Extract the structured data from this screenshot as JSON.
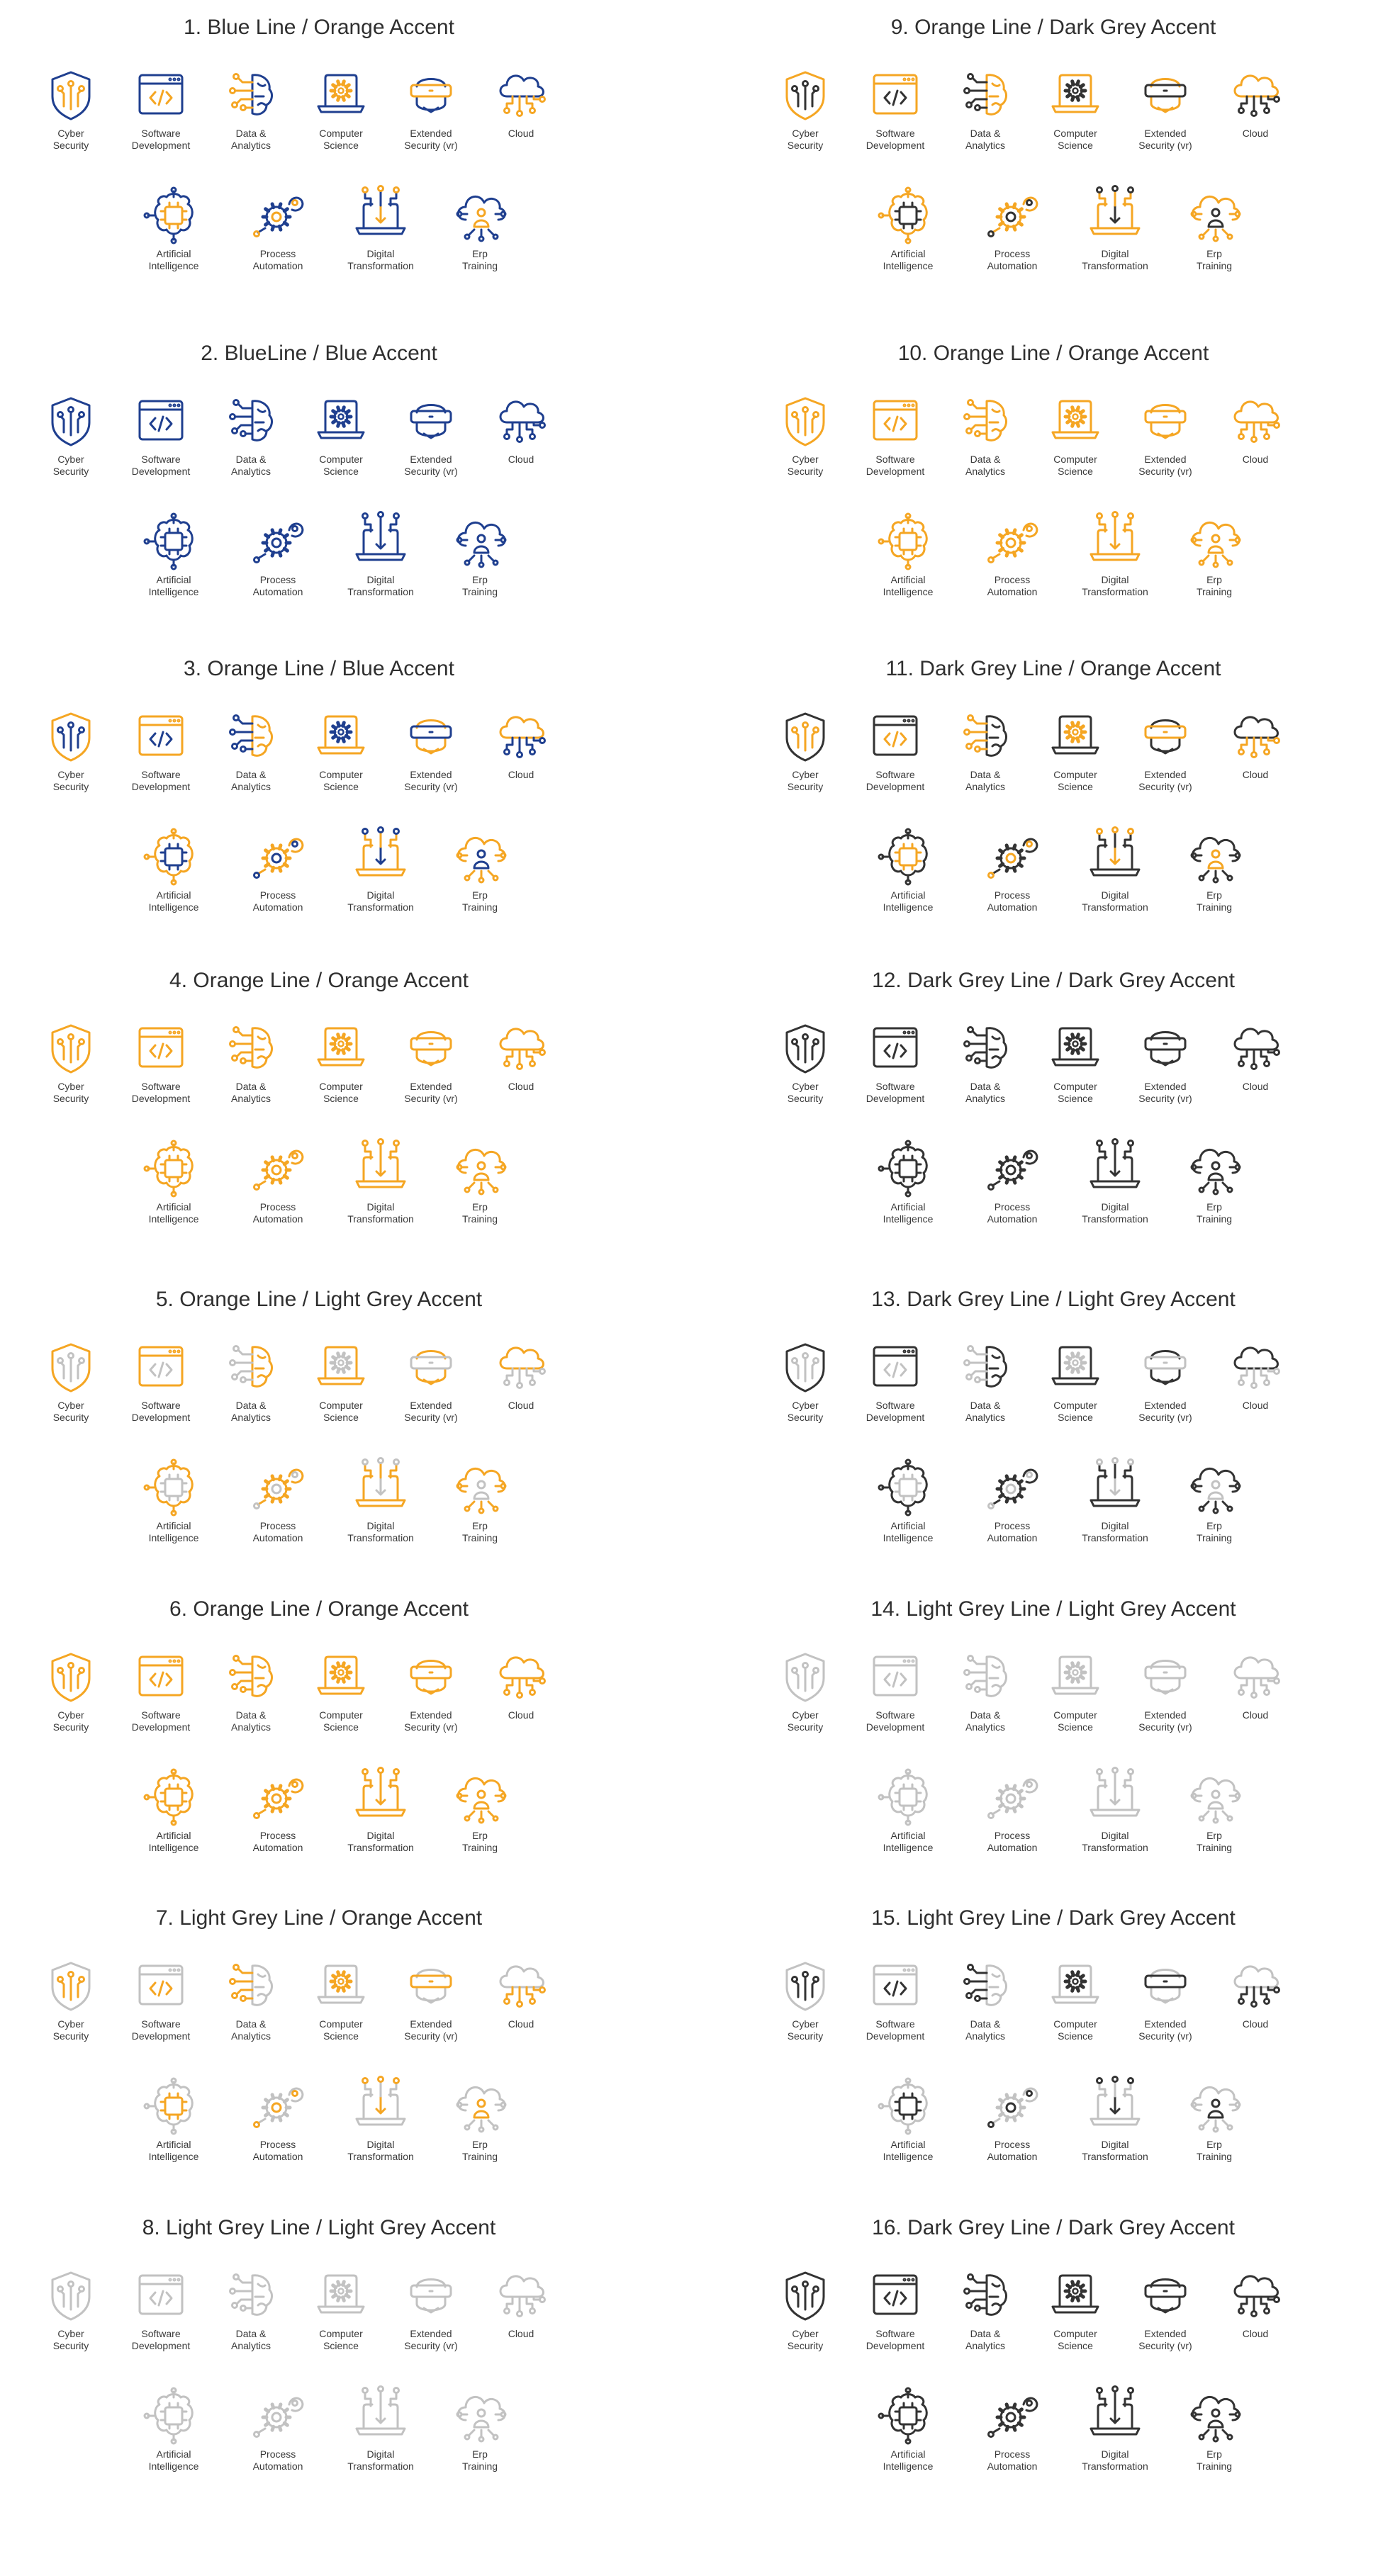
{
  "colors": {
    "blue": "#1f3f8f",
    "orange": "#f5a623",
    "dark_grey": "#333333",
    "light_grey": "#c2c2c2"
  },
  "icons": [
    {
      "key": "shield",
      "icon": "shield-icon",
      "line1": "Cyber",
      "line2": "Security"
    },
    {
      "key": "code",
      "icon": "code-window-icon",
      "line1": "Software",
      "line2": "Development"
    },
    {
      "key": "brain",
      "icon": "brain-circuit-icon",
      "line1": "Data &",
      "line2": "Analytics"
    },
    {
      "key": "laptopgear",
      "icon": "laptop-gear-icon",
      "line1": "Computer",
      "line2": "Science"
    },
    {
      "key": "vr",
      "icon": "vr-headset-icon",
      "line1": "Extended",
      "line2": "Security (vr)"
    },
    {
      "key": "cloud",
      "icon": "cloud-circuit-icon",
      "line1": "Cloud",
      "line2": ""
    },
    {
      "key": "chip",
      "icon": "ai-chip-icon",
      "line1": "Artificial",
      "line2": "Intelligence"
    },
    {
      "key": "gears",
      "icon": "gears-icon",
      "line1": "Process",
      "line2": "Automation"
    },
    {
      "key": "laptopupload",
      "icon": "laptop-transform-icon",
      "line1": "Digital",
      "line2": "Transformation"
    },
    {
      "key": "cloudperson",
      "icon": "cloud-person-icon",
      "line1": "Erp",
      "line2": "Training"
    }
  ],
  "sets": [
    {
      "title": "1. Blue Line / Orange Accent",
      "line": "blue",
      "accent": "orange"
    },
    {
      "title": "2. BlueLine / Blue Accent",
      "line": "blue",
      "accent": "blue"
    },
    {
      "title": "3. Orange Line / Blue Accent",
      "line": "orange",
      "accent": "blue"
    },
    {
      "title": "4. Orange Line / Orange Accent",
      "line": "orange",
      "accent": "orange"
    },
    {
      "title": "5. Orange Line / Light Grey Accent",
      "line": "orange",
      "accent": "light_grey"
    },
    {
      "title": "6. Orange Line / Orange Accent",
      "line": "orange",
      "accent": "orange"
    },
    {
      "title": "7. Light Grey Line / Orange Accent",
      "line": "light_grey",
      "accent": "orange"
    },
    {
      "title": "8. Light Grey Line / Light Grey Accent",
      "line": "light_grey",
      "accent": "light_grey"
    },
    {
      "title": "9. Orange Line / Dark Grey Accent",
      "line": "orange",
      "accent": "dark_grey"
    },
    {
      "title": "10. Orange Line / Orange Accent",
      "line": "orange",
      "accent": "orange"
    },
    {
      "title": "11. Dark Grey Line / Orange Accent",
      "line": "dark_grey",
      "accent": "orange"
    },
    {
      "title": "12. Dark Grey Line / Dark Grey Accent",
      "line": "dark_grey",
      "accent": "dark_grey"
    },
    {
      "title": "13. Dark Grey Line / Light Grey Accent",
      "line": "dark_grey",
      "accent": "light_grey"
    },
    {
      "title": "14. Light Grey Line / Light Grey Accent",
      "line": "light_grey",
      "accent": "light_grey"
    },
    {
      "title": "15. Light Grey Line / Dark Grey Accent",
      "line": "light_grey",
      "accent": "dark_grey"
    },
    {
      "title": "16. Dark Grey Line / Dark Grey Accent",
      "line": "dark_grey",
      "accent": "dark_grey"
    }
  ]
}
